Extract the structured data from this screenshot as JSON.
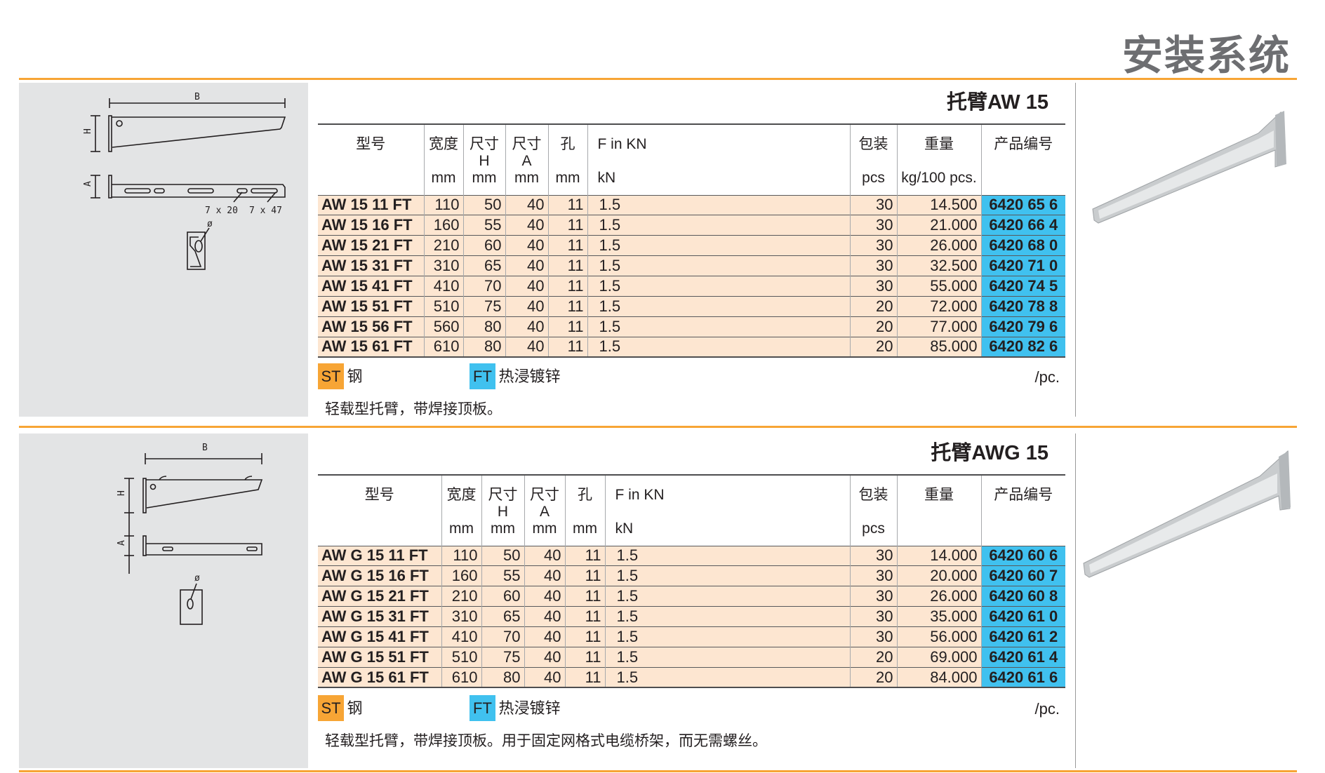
{
  "header": {
    "title": "安装系统"
  },
  "colors": {
    "accent": "#f7a535",
    "code_bg": "#40c1ef",
    "row_bg": "#fde6d1",
    "panel_bg": "#e3e4e5"
  },
  "sections": [
    {
      "title": "托臂AW 15",
      "drawing_labels": {
        "b": "B",
        "h": "H",
        "a": "A",
        "slot1": "7 x 20",
        "slot2": "7 x 47",
        "dia": "ø"
      },
      "columns": [
        [
          "型号",
          "",
          ""
        ],
        [
          "宽度",
          "",
          "mm"
        ],
        [
          "尺寸",
          "H",
          "mm"
        ],
        [
          "尺寸",
          "A",
          "mm"
        ],
        [
          "孔",
          "",
          "mm"
        ],
        [
          "F in KN",
          "",
          "kN"
        ],
        [
          "包装",
          "",
          "pcs"
        ],
        [
          "重量",
          "",
          "kg/100 pcs."
        ],
        [
          "产品编号",
          "",
          ""
        ]
      ],
      "rows": [
        [
          "AW 15 11 FT",
          "110",
          "50",
          "40",
          "11",
          "1.5",
          "30",
          "14.500",
          "6420 65 6"
        ],
        [
          "AW 15 16 FT",
          "160",
          "55",
          "40",
          "11",
          "1.5",
          "30",
          "21.000",
          "6420 66 4"
        ],
        [
          "AW 15 21 FT",
          "210",
          "60",
          "40",
          "11",
          "1.5",
          "30",
          "26.000",
          "6420 68 0"
        ],
        [
          "AW 15 31 FT",
          "310",
          "65",
          "40",
          "11",
          "1.5",
          "30",
          "32.500",
          "6420 71 0"
        ],
        [
          "AW 15 41 FT",
          "410",
          "70",
          "40",
          "11",
          "1.5",
          "30",
          "55.000",
          "6420 74 5"
        ],
        [
          "AW 15 51 FT",
          "510",
          "75",
          "40",
          "11",
          "1.5",
          "20",
          "72.000",
          "6420 78 8"
        ],
        [
          "AW 15 56 FT",
          "560",
          "80",
          "40",
          "11",
          "1.5",
          "20",
          "77.000",
          "6420 79 6"
        ],
        [
          "AW 15 61 FT",
          "610",
          "80",
          "40",
          "11",
          "1.5",
          "20",
          "85.000",
          "6420 82 6"
        ]
      ],
      "legend": {
        "st_code": "ST",
        "st_label": "钢",
        "ft_code": "FT",
        "ft_label": "热浸镀锌",
        "unit": "/pc."
      },
      "description": "轻载型托臂，带焊接顶板。"
    },
    {
      "title": "托臂AWG 15",
      "drawing_labels": {
        "b": "B",
        "h": "H",
        "a": "A",
        "dia": "ø"
      },
      "columns": [
        [
          "型号",
          "",
          ""
        ],
        [
          "宽度",
          "",
          "mm"
        ],
        [
          "尺寸",
          "H",
          "mm"
        ],
        [
          "尺寸",
          "A",
          "mm"
        ],
        [
          "孔",
          "",
          "mm"
        ],
        [
          "F in KN",
          "",
          "kN"
        ],
        [
          "包装",
          "",
          "pcs"
        ],
        [
          "重量",
          "",
          ""
        ],
        [
          "产品编号",
          "",
          ""
        ]
      ],
      "rows": [
        [
          "AW G 15 11 FT",
          "110",
          "50",
          "40",
          "11",
          "1.5",
          "30",
          "14.000",
          "6420 60 6"
        ],
        [
          "AW G 15 16 FT",
          "160",
          "55",
          "40",
          "11",
          "1.5",
          "30",
          "20.000",
          "6420 60 7"
        ],
        [
          "AW G 15 21 FT",
          "210",
          "60",
          "40",
          "11",
          "1.5",
          "30",
          "26.000",
          "6420 60 8"
        ],
        [
          "AW G 15 31 FT",
          "310",
          "65",
          "40",
          "11",
          "1.5",
          "30",
          "35.000",
          "6420 61 0"
        ],
        [
          "AW G 15 41 FT",
          "410",
          "70",
          "40",
          "11",
          "1.5",
          "30",
          "56.000",
          "6420 61 2"
        ],
        [
          "AW G 15 51 FT",
          "510",
          "75",
          "40",
          "11",
          "1.5",
          "20",
          "69.000",
          "6420 61 4"
        ],
        [
          "AW G 15 61 FT",
          "610",
          "80",
          "40",
          "11",
          "1.5",
          "20",
          "84.000",
          "6420 61 6"
        ]
      ],
      "legend": {
        "st_code": "ST",
        "st_label": "钢",
        "ft_code": "FT",
        "ft_label": "热浸镀锌",
        "unit": "/pc."
      },
      "description": "轻载型托臂，带焊接顶板。用于固定网格式电缆桥架，而无需螺丝。"
    }
  ]
}
